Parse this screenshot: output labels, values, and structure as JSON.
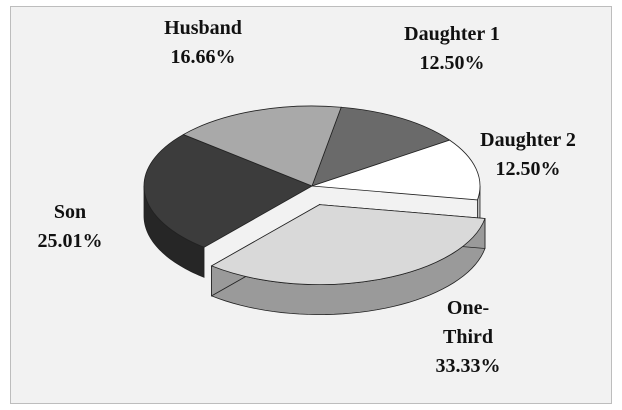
{
  "chart_data": {
    "type": "pie",
    "categories": [
      "Daughter 1",
      "Daughter 2",
      "One-Third",
      "Son",
      "Husband"
    ],
    "values": [
      12.5,
      12.5,
      33.33,
      25.01,
      16.66
    ],
    "value_labels": [
      "12.50%",
      "12.50%",
      "33.33%",
      "25.01%",
      "16.66%"
    ],
    "colors": [
      "#6a6a6a",
      "#ffffff",
      "#d9d9d9",
      "#3c3c3c",
      "#a9a9a9"
    ],
    "side_colors": [
      "#4a4a4a",
      "#bbbbbb",
      "#9a9a9a",
      "#262626",
      "#808080"
    ],
    "exploded": [
      false,
      false,
      true,
      false,
      false
    ]
  }
}
